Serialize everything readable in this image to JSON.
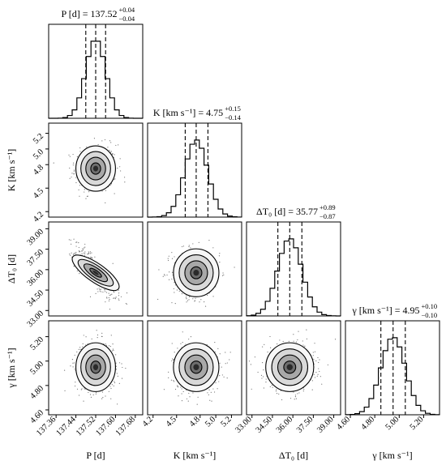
{
  "chart_data": {
    "type": "corner",
    "parameters": [
      {
        "key": "P",
        "label": "P [d]",
        "title_main": "P [d] = 137.52",
        "title_sup": "+0.04",
        "title_sub": "−0.04",
        "median": 137.52,
        "q_lo": 137.48,
        "q_hi": 137.56,
        "sigma": 0.04,
        "range": [
          137.33,
          137.71
        ],
        "ticks": [
          "137.36",
          "137.44",
          "137.52",
          "137.60",
          "137.68"
        ]
      },
      {
        "key": "K",
        "label": "K [km s⁻¹]",
        "title_main": "K [km s⁻¹] = 4.75",
        "title_sup": "+0.15",
        "title_sub": "−0.14",
        "median": 4.75,
        "q_lo": 4.61,
        "q_hi": 4.9,
        "sigma": 0.145,
        "range": [
          4.13,
          5.33
        ],
        "ticks": [
          "4.2",
          "4.5",
          "4.8",
          "5.0",
          "5.2"
        ]
      },
      {
        "key": "dT0",
        "label": "ΔT₀ [d]",
        "title_main": "ΔT₀ [d] = 35.77",
        "title_sup": "+0.89",
        "title_sub": "−0.87",
        "median": 35.77,
        "q_lo": 34.9,
        "q_hi": 36.66,
        "sigma": 0.88,
        "range": [
          32.6,
          39.5
        ],
        "ticks": [
          "33.00",
          "34.50",
          "36.00",
          "37.50",
          "39.00"
        ]
      },
      {
        "key": "gamma",
        "label": "γ [km s⁻¹]",
        "title_main": "γ [km s⁻¹] = 4.95",
        "title_sup": "+0.10",
        "title_sub": "−0.10",
        "median": 4.95,
        "q_lo": 4.85,
        "q_hi": 5.05,
        "sigma": 0.1,
        "range": [
          4.56,
          5.33
        ],
        "ticks": [
          "4.60",
          "4.80",
          "5.00",
          "5.20"
        ]
      }
    ],
    "row_tick_labels": {
      "K": [
        "4.2",
        "4.5",
        "4.8",
        "5.0",
        "5.2"
      ],
      "dT0": [
        "33.00",
        "34.50",
        "36.00",
        "37.50",
        "39.00"
      ],
      "gamma": [
        "4.60",
        "4.80",
        "5.00",
        "5.20"
      ]
    },
    "correlations": {
      "P-dT0": -0.8
    },
    "colors": {
      "line": "#000000",
      "density": "#000000",
      "points": "#555555"
    }
  }
}
